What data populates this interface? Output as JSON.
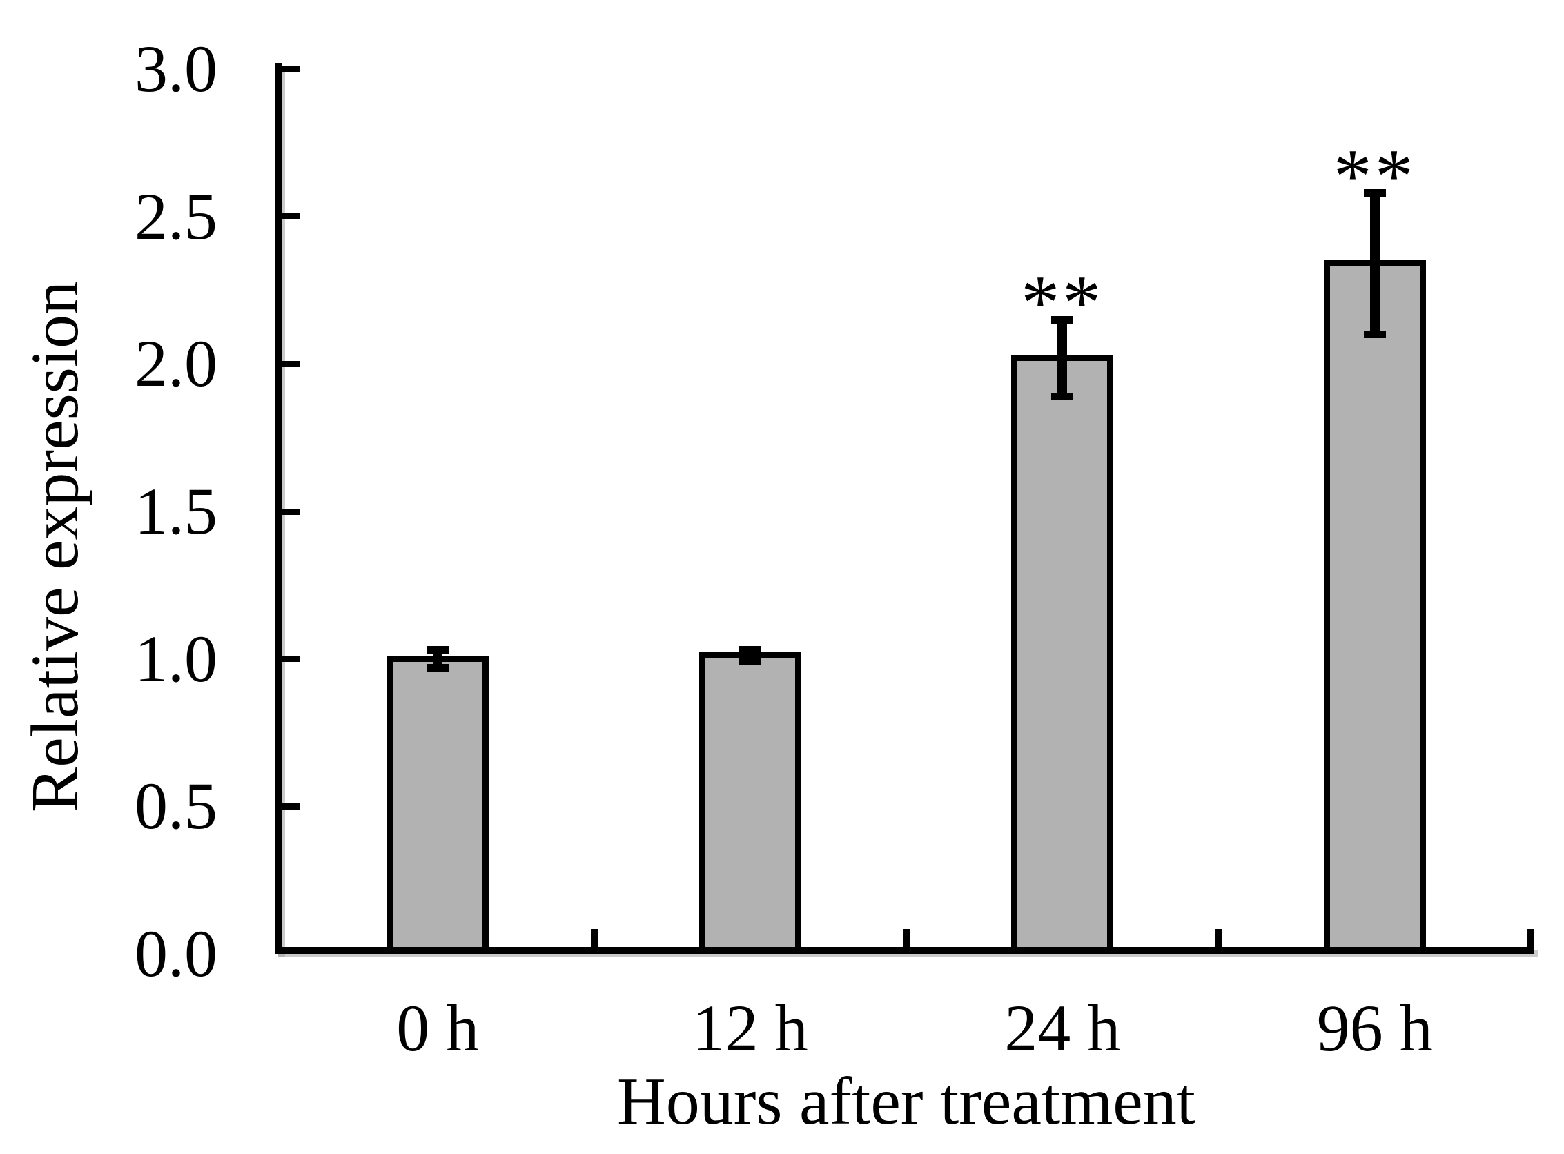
{
  "chart_data": {
    "type": "bar",
    "title": "",
    "xlabel": "Hours after treatment",
    "ylabel": "Relative expression",
    "categories": [
      "0 h",
      "12 h",
      "24 h",
      "96 h"
    ],
    "values": [
      1.0,
      1.01,
      2.02,
      2.34
    ],
    "errors": [
      0.03,
      0.02,
      0.13,
      0.24
    ],
    "significance": [
      "",
      "",
      "**",
      "**"
    ],
    "y_ticks": [
      0.0,
      0.5,
      1.0,
      1.5,
      2.0,
      2.5,
      3.0
    ],
    "y_tick_labels": [
      "0.0",
      "0.5",
      "1.0",
      "1.5",
      "2.0",
      "2.5",
      "3.0"
    ],
    "ylim": [
      0.0,
      3.0
    ],
    "grid": false,
    "legend": "none",
    "colors": {
      "bar_fill": "#b2b2b2",
      "bar_outline": "#000000",
      "axis": "#000000",
      "text": "#000000",
      "background": "#ffffff"
    }
  }
}
